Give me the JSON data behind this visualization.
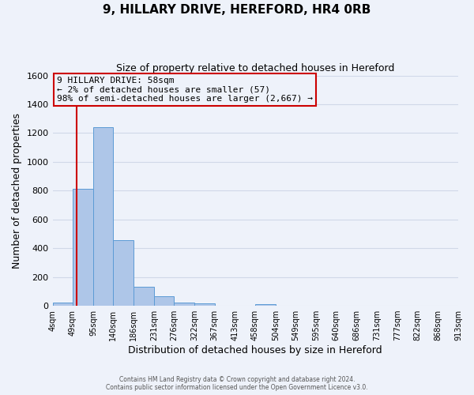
{
  "title": "9, HILLARY DRIVE, HEREFORD, HR4 0RB",
  "subtitle": "Size of property relative to detached houses in Hereford",
  "xlabel": "Distribution of detached houses by size in Hereford",
  "ylabel": "Number of detached properties",
  "bin_edges": [
    4,
    49,
    95,
    140,
    186,
    231,
    276,
    322,
    367,
    413,
    458,
    504,
    549,
    595,
    640,
    686,
    731,
    777,
    822,
    868,
    913
  ],
  "bin_heights": [
    25,
    810,
    1240,
    455,
    130,
    65,
    22,
    15,
    0,
    0,
    12,
    0,
    0,
    0,
    0,
    0,
    0,
    0,
    0,
    0
  ],
  "bar_color": "#aec6e8",
  "bar_edge_color": "#5b9bd5",
  "grid_color": "#d0d8e8",
  "background_color": "#eef2fa",
  "property_line_x": 58,
  "property_line_color": "#cc0000",
  "ylim": [
    0,
    1600
  ],
  "yticks": [
    0,
    200,
    400,
    600,
    800,
    1000,
    1200,
    1400,
    1600
  ],
  "annotation_box_color": "#cc0000",
  "annotation_text_line1": "9 HILLARY DRIVE: 58sqm",
  "annotation_text_line2": "← 2% of detached houses are smaller (57)",
  "annotation_text_line3": "98% of semi-detached houses are larger (2,667) →",
  "footer_line1": "Contains HM Land Registry data © Crown copyright and database right 2024.",
  "footer_line2": "Contains public sector information licensed under the Open Government Licence v3.0."
}
